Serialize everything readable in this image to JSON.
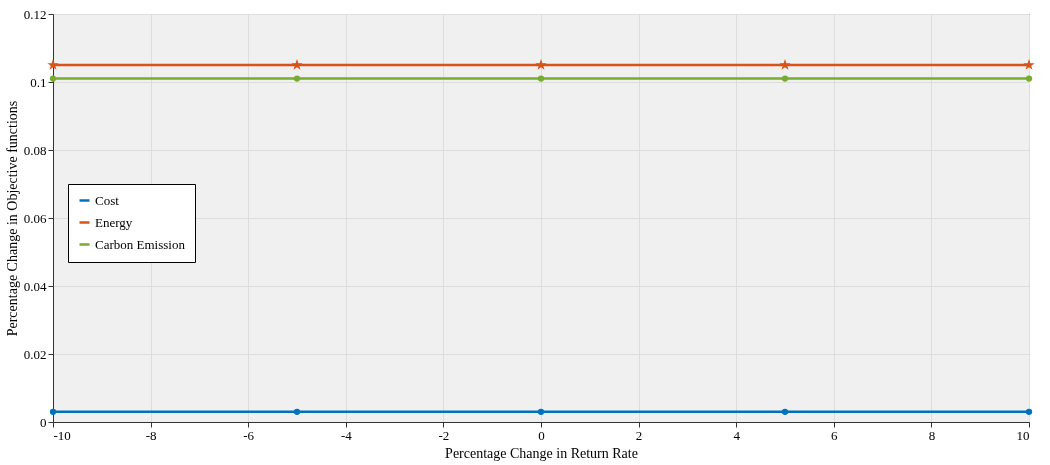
{
  "chart_data": {
    "type": "line",
    "xlabel": "Percentage Change in Return Rate",
    "ylabel": "Percentage Change in Objective functions",
    "x": [
      -10,
      -5,
      0,
      5,
      10
    ],
    "series": [
      {
        "name": "Cost",
        "color": "#0072bd",
        "marker": "circle",
        "values": [
          0.003,
          0.003,
          0.003,
          0.003,
          0.003
        ]
      },
      {
        "name": "Energy",
        "color": "#d95319",
        "marker": "star",
        "values": [
          0.105,
          0.105,
          0.105,
          0.105,
          0.105
        ]
      },
      {
        "name": "Carbon Emission",
        "color": "#77ac30",
        "marker": "circle",
        "values": [
          0.101,
          0.101,
          0.101,
          0.101,
          0.101
        ]
      }
    ],
    "xlim": [
      -10,
      10
    ],
    "xticks": [
      -10,
      -8,
      -6,
      -4,
      -2,
      0,
      2,
      4,
      6,
      8,
      10
    ],
    "ylim": [
      0,
      0.12
    ],
    "yticks": [
      0,
      0.02,
      0.04,
      0.06,
      0.08,
      0.1,
      0.12
    ],
    "grid": true,
    "legend": "left",
    "line_style": "solid"
  }
}
